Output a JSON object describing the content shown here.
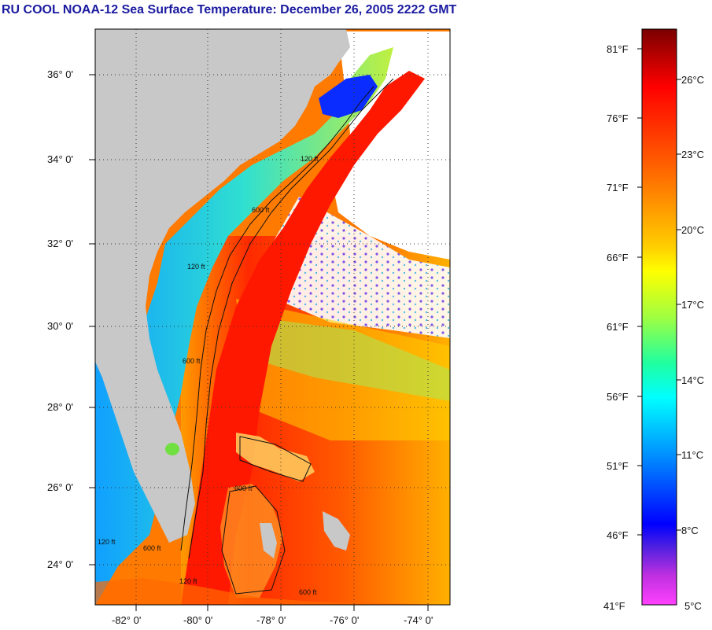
{
  "title": "RU COOL  NOAA-12  Sea Surface Temperature:  December 26, 2005 2222 GMT",
  "map": {
    "lat_ticks": [
      "36° 0'",
      "34° 0'",
      "32° 0'",
      "30° 0'",
      "28° 0'",
      "26° 0'",
      "24° 0'"
    ],
    "lon_ticks": [
      "-82° 0'",
      "-80° 0'",
      "-78° 0'",
      "-76° 0'",
      "-74° 0'"
    ],
    "contour_labels": [
      "120 ft",
      "600 ft",
      "120 ft",
      "600 ft",
      "120 ft",
      "600 ft",
      "600 ft",
      "120 ft",
      "600 ft"
    ],
    "colors": {
      "land": "#c8c8c8",
      "no_data": "#ffffff",
      "gulf_stream": "#ff2a00",
      "coastal_cool": "#2fd2ff",
      "nearshore": "#1a3aff"
    }
  },
  "colorbar": {
    "fahrenheit": [
      "81°F",
      "76°F",
      "71°F",
      "66°F",
      "61°F",
      "56°F",
      "51°F",
      "46°F",
      "41°F"
    ],
    "celsius": [
      "26°C",
      "23°C",
      "20°C",
      "17°C",
      "14°C",
      "11°C",
      "8°C",
      "5°C"
    ],
    "gradient": [
      "#800000",
      "#ff0000",
      "#ff8000",
      "#ffff00",
      "#80ff40",
      "#00ffff",
      "#0080ff",
      "#0000ff",
      "#800080",
      "#ff00ff"
    ]
  }
}
